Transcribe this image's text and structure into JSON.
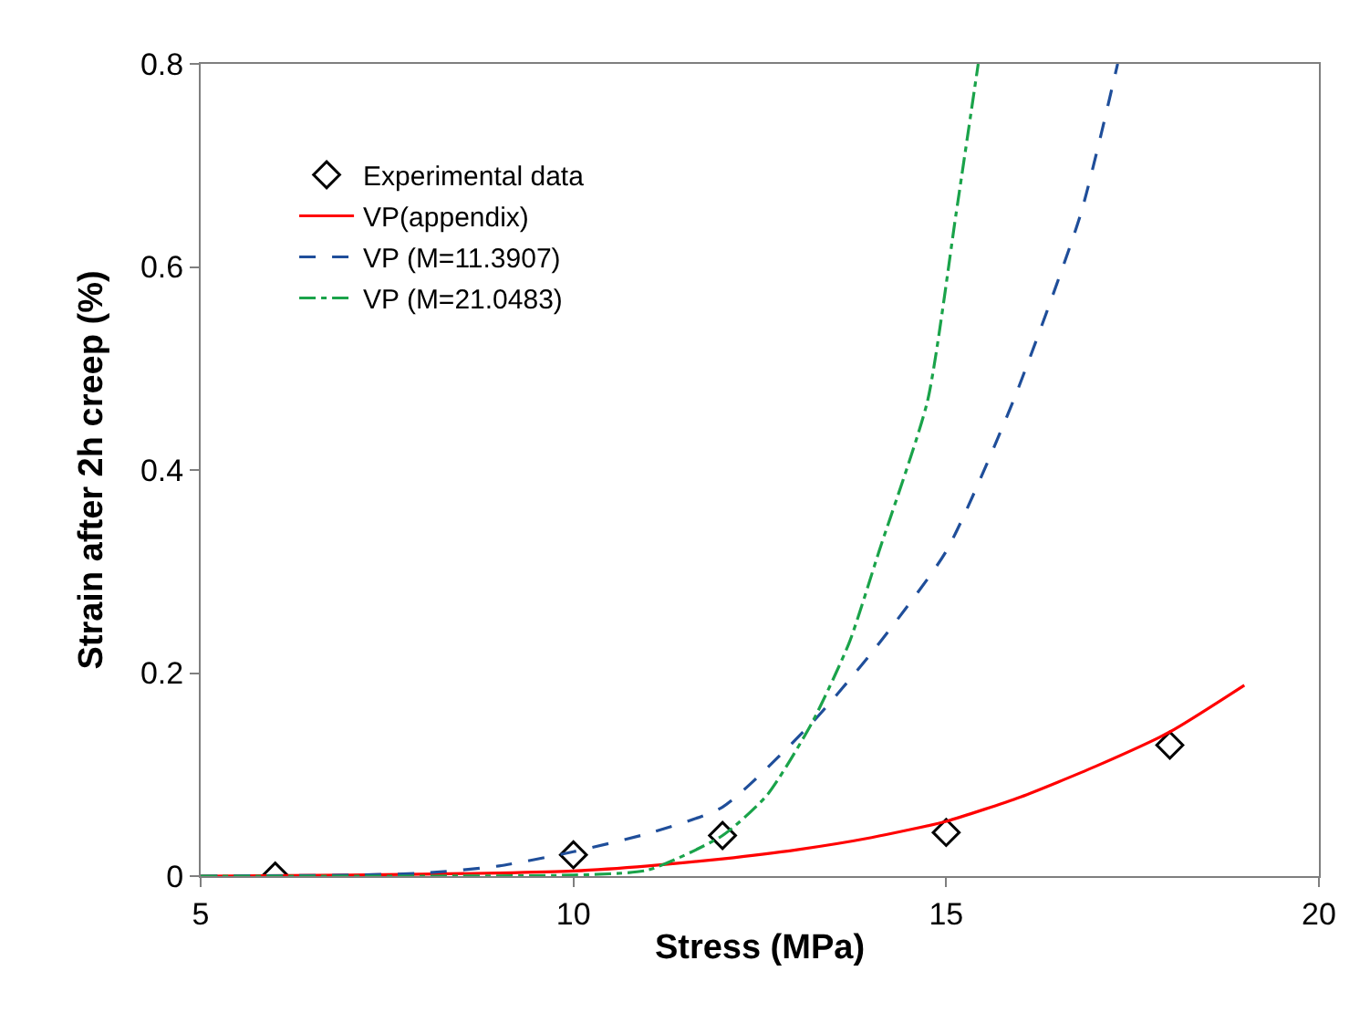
{
  "chart_data": {
    "type": "line",
    "xlabel": "Stress (MPa)",
    "ylabel": "Strain after 2h creep (%)",
    "xlim": [
      5,
      20
    ],
    "xticks": [
      5,
      10,
      15,
      20
    ],
    "ylim": [
      0,
      0.8
    ],
    "yticks": [
      0,
      0.2,
      0.4,
      0.6,
      0.8
    ],
    "legend": "top left",
    "series": [
      {
        "name": "Experimental data",
        "type": "scatter",
        "marker": "diamond",
        "color": "#000000",
        "x": [
          6,
          10,
          12,
          15,
          18
        ],
        "values": [
          0,
          0.021,
          0.04,
          0.043,
          0.129
        ]
      },
      {
        "name": "VP(appendix)",
        "line_style": "solid",
        "color": "#ff0000",
        "x": [
          5,
          7,
          9,
          10,
          11,
          12,
          13,
          14,
          15,
          16,
          17,
          18,
          19
        ],
        "values": [
          0,
          0.001,
          0.003,
          0.005,
          0.01,
          0.017,
          0.026,
          0.038,
          0.054,
          0.078,
          0.108,
          0.142,
          0.188
        ]
      },
      {
        "name": "VP (M=11.3907)",
        "line_style": "dashed",
        "color": "#1f4e9a",
        "x": [
          5,
          7,
          8,
          9,
          10,
          11,
          12,
          13.2,
          14,
          15,
          15.9,
          16.8,
          17.3
        ],
        "values": [
          0,
          0.001,
          0.003,
          0.01,
          0.024,
          0.042,
          0.068,
          0.151,
          0.22,
          0.32,
          0.468,
          0.651,
          0.8
        ]
      },
      {
        "name": "VP (M=21.0483)",
        "line_style": "dashdot",
        "color": "#1aa34a",
        "x": [
          5,
          8,
          10,
          11,
          12,
          12.6,
          13.2,
          13.7,
          14.1,
          14.75,
          15.13,
          15.43
        ],
        "values": [
          0,
          0,
          0.001,
          0.006,
          0.04,
          0.08,
          0.151,
          0.23,
          0.32,
          0.468,
          0.651,
          0.8
        ]
      }
    ]
  }
}
